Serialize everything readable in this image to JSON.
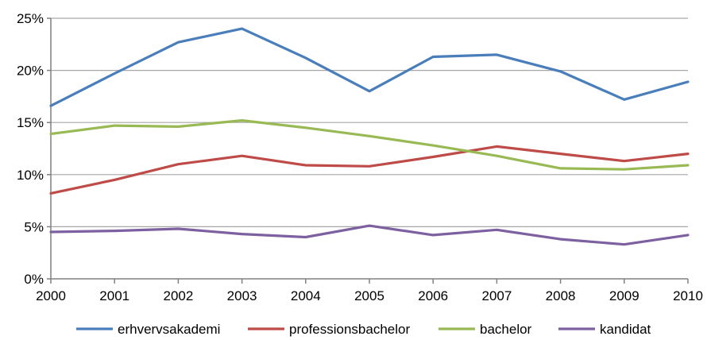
{
  "chart_data": {
    "type": "line",
    "title": "",
    "xlabel": "",
    "ylabel": "",
    "x": [
      2000,
      2001,
      2002,
      2003,
      2004,
      2005,
      2006,
      2007,
      2008,
      2009,
      2010
    ],
    "x_tick_labels": [
      "2000",
      "2001",
      "2002",
      "2003",
      "2004",
      "2005",
      "2006",
      "2007",
      "2008",
      "2009",
      "2010"
    ],
    "ylim": [
      0,
      25
    ],
    "y_ticks": [
      0,
      5,
      10,
      15,
      20,
      25
    ],
    "y_tick_labels": [
      "0%",
      "5%",
      "10%",
      "15%",
      "20%",
      "25%"
    ],
    "grid": "horizontal",
    "legend_position": "bottom",
    "series": [
      {
        "name": "erhvervsakademi",
        "color": "#4a7ebb",
        "values": [
          16.6,
          19.7,
          22.7,
          24.0,
          21.2,
          18.0,
          21.3,
          21.5,
          19.9,
          17.2,
          18.9
        ]
      },
      {
        "name": "professionsbachelor",
        "color": "#be4b48",
        "values": [
          8.2,
          9.5,
          11.0,
          11.8,
          10.9,
          10.8,
          11.7,
          12.7,
          12.0,
          11.3,
          12.0
        ]
      },
      {
        "name": "bachelor",
        "color": "#98b954",
        "values": [
          13.9,
          14.7,
          14.6,
          15.2,
          14.5,
          13.7,
          12.8,
          11.8,
          10.6,
          10.5,
          10.9
        ]
      },
      {
        "name": "kandidat",
        "color": "#7d60a0",
        "values": [
          4.5,
          4.6,
          4.8,
          4.3,
          4.0,
          5.1,
          4.2,
          4.7,
          3.8,
          3.3,
          4.2
        ]
      }
    ]
  }
}
